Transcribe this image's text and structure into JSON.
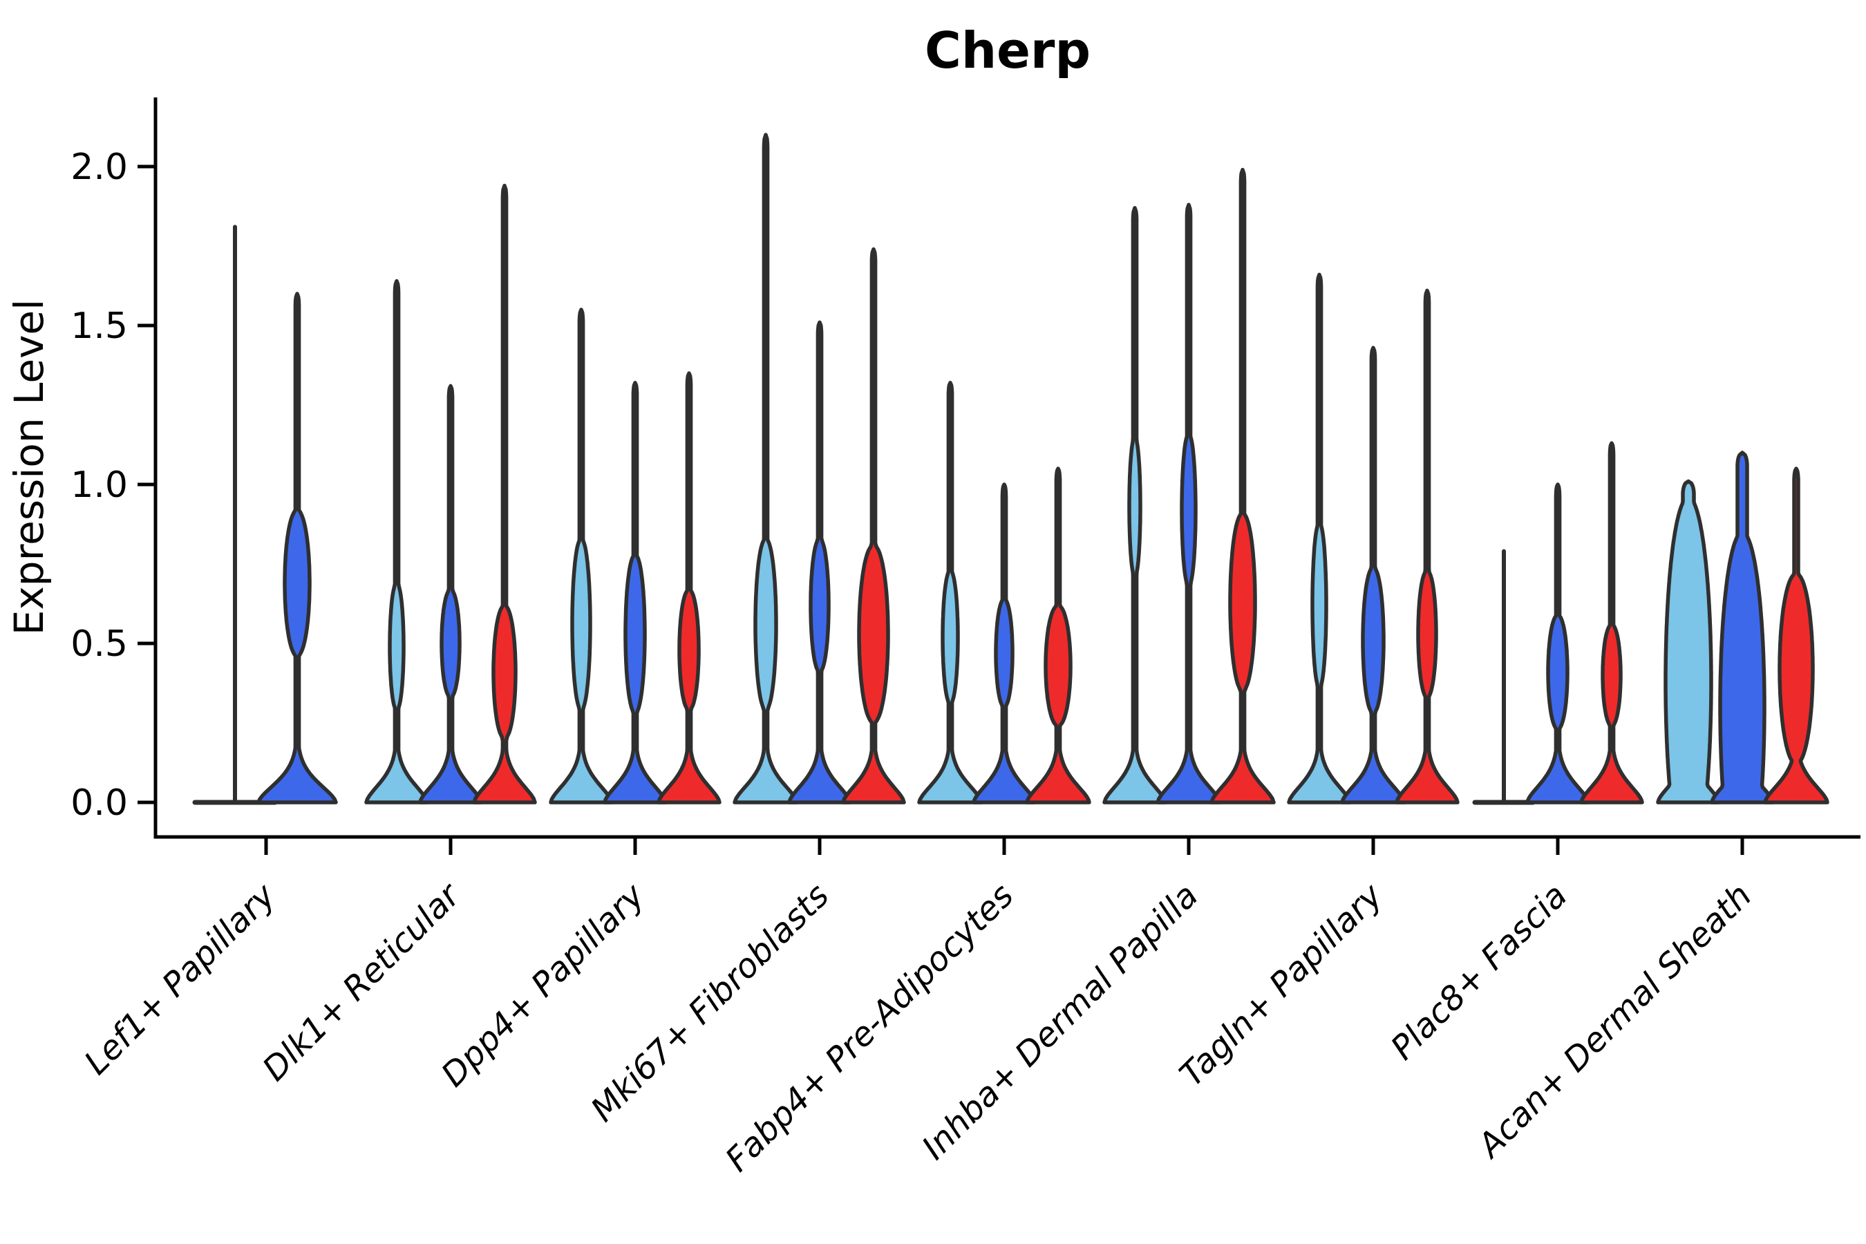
{
  "chart_data": {
    "type": "violin",
    "title": "Cherp",
    "ylabel": "Expression Level",
    "xlabel": "",
    "ylim": [
      0,
      2.2
    ],
    "yticks": [
      0.0,
      0.5,
      1.0,
      1.5,
      2.0
    ],
    "ytick_labels": [
      "0.0",
      "0.5",
      "1.0",
      "1.5",
      "2.0"
    ],
    "grid": false,
    "legend": "none",
    "categories": [
      "Lef1+ Papillary",
      "Dlk1+ Reticular",
      "Dpp4+ Papillary",
      "Mki67+ Fibroblasts",
      "Fabp4+ Pre-Adipocytes",
      "Inhba+ Dermal Papilla",
      "Tagln+ Papillary",
      "Plac8+ Fascia",
      "Acan+ Dermal Sheath"
    ],
    "series": [
      "light_blue",
      "dark_blue",
      "red"
    ],
    "series_colors": {
      "light_blue": "#7CC4E8",
      "dark_blue": "#3D68EA",
      "red": "#EF2A2B"
    },
    "outline_color": "#2F2F2F",
    "groups": [
      {
        "category": "Lef1+ Papillary",
        "violins": [
          {
            "series": "light_blue",
            "shape": "degenerate",
            "max": 1.81,
            "offset": -45,
            "flat_halfspan": 58
          },
          {
            "series": "dark_blue",
            "shape": "normal",
            "max": 1.6,
            "offset": 45,
            "bulge_center": 0.69,
            "bulge_halfheight": 0.23,
            "bulge_halfwidth": 18,
            "base_halfwidth": 56
          }
        ]
      },
      {
        "category": "Dlk1+ Reticular",
        "violins": [
          {
            "series": "light_blue",
            "shape": "normal",
            "max": 1.64,
            "offset": -78,
            "bulge_center": 0.49,
            "bulge_halfheight": 0.2,
            "bulge_halfwidth": 10,
            "base_halfwidth": 44
          },
          {
            "series": "dark_blue",
            "shape": "normal",
            "max": 1.31,
            "offset": 0,
            "bulge_center": 0.5,
            "bulge_halfheight": 0.17,
            "bulge_halfwidth": 13,
            "base_halfwidth": 44
          },
          {
            "series": "red",
            "shape": "normal",
            "max": 1.94,
            "offset": 78,
            "bulge_center": 0.41,
            "bulge_halfheight": 0.21,
            "bulge_halfwidth": 16,
            "base_halfwidth": 44
          }
        ]
      },
      {
        "category": "Dpp4+ Papillary",
        "violins": [
          {
            "series": "light_blue",
            "shape": "normal",
            "max": 1.55,
            "offset": -78,
            "bulge_center": 0.56,
            "bulge_halfheight": 0.27,
            "bulge_halfwidth": 13,
            "base_halfwidth": 44
          },
          {
            "series": "dark_blue",
            "shape": "normal",
            "max": 1.32,
            "offset": 0,
            "bulge_center": 0.53,
            "bulge_halfheight": 0.25,
            "bulge_halfwidth": 14,
            "base_halfwidth": 44
          },
          {
            "series": "red",
            "shape": "normal",
            "max": 1.35,
            "offset": 78,
            "bulge_center": 0.48,
            "bulge_halfheight": 0.19,
            "bulge_halfwidth": 14,
            "base_halfwidth": 44
          }
        ]
      },
      {
        "category": "Mki67+ Fibroblasts",
        "violins": [
          {
            "series": "light_blue",
            "shape": "normal",
            "max": 2.1,
            "offset": -78,
            "bulge_center": 0.56,
            "bulge_halfheight": 0.27,
            "bulge_halfwidth": 15,
            "base_halfwidth": 45
          },
          {
            "series": "dark_blue",
            "shape": "normal",
            "max": 1.51,
            "offset": 0,
            "bulge_center": 0.62,
            "bulge_halfheight": 0.21,
            "bulge_halfwidth": 13,
            "base_halfwidth": 44
          },
          {
            "series": "red",
            "shape": "normal",
            "max": 1.74,
            "offset": 78,
            "bulge_center": 0.53,
            "bulge_halfheight": 0.28,
            "bulge_halfwidth": 21,
            "base_halfwidth": 44
          }
        ]
      },
      {
        "category": "Fabp4+ Pre-Adipocytes",
        "violins": [
          {
            "series": "light_blue",
            "shape": "normal",
            "max": 1.32,
            "offset": -78,
            "bulge_center": 0.52,
            "bulge_halfheight": 0.21,
            "bulge_halfwidth": 11,
            "base_halfwidth": 45
          },
          {
            "series": "dark_blue",
            "shape": "normal",
            "max": 1.0,
            "offset": 0,
            "bulge_center": 0.47,
            "bulge_halfheight": 0.17,
            "bulge_halfwidth": 12,
            "base_halfwidth": 44
          },
          {
            "series": "red",
            "shape": "normal",
            "max": 1.05,
            "offset": 78,
            "bulge_center": 0.43,
            "bulge_halfheight": 0.19,
            "bulge_halfwidth": 18,
            "base_halfwidth": 45
          }
        ]
      },
      {
        "category": "Inhba+ Dermal Papilla",
        "violins": [
          {
            "series": "light_blue",
            "shape": "normal",
            "max": 1.87,
            "offset": -78,
            "bulge_center": 0.93,
            "bulge_halfheight": 0.22,
            "bulge_halfwidth": 8,
            "base_halfwidth": 44
          },
          {
            "series": "dark_blue",
            "shape": "normal",
            "max": 1.88,
            "offset": 0,
            "bulge_center": 0.92,
            "bulge_halfheight": 0.24,
            "bulge_halfwidth": 10,
            "base_halfwidth": 45
          },
          {
            "series": "red",
            "shape": "normal",
            "max": 1.99,
            "offset": 78,
            "bulge_center": 0.63,
            "bulge_halfheight": 0.28,
            "bulge_halfwidth": 18,
            "base_halfwidth": 45
          }
        ]
      },
      {
        "category": "Tagln+ Papillary",
        "violins": [
          {
            "series": "light_blue",
            "shape": "normal",
            "max": 1.66,
            "offset": -78,
            "bulge_center": 0.62,
            "bulge_halfheight": 0.26,
            "bulge_halfwidth": 10,
            "base_halfwidth": 44
          },
          {
            "series": "dark_blue",
            "shape": "normal",
            "max": 1.43,
            "offset": 0,
            "bulge_center": 0.51,
            "bulge_halfheight": 0.23,
            "bulge_halfwidth": 15,
            "base_halfwidth": 45
          },
          {
            "series": "red",
            "shape": "normal",
            "max": 1.61,
            "offset": 78,
            "bulge_center": 0.53,
            "bulge_halfheight": 0.2,
            "bulge_halfwidth": 13,
            "base_halfwidth": 44
          }
        ]
      },
      {
        "category": "Plac8+ Fascia",
        "violins": [
          {
            "series": "light_blue",
            "shape": "degenerate",
            "max": 0.79,
            "offset": -78,
            "flat_halfspan": 42
          },
          {
            "series": "dark_blue",
            "shape": "normal",
            "max": 1.0,
            "offset": 0,
            "bulge_center": 0.41,
            "bulge_halfheight": 0.18,
            "bulge_halfwidth": 14,
            "base_halfwidth": 44
          },
          {
            "series": "red",
            "shape": "normal",
            "max": 1.13,
            "offset": 78,
            "bulge_center": 0.4,
            "bulge_halfheight": 0.16,
            "bulge_halfwidth": 13,
            "base_halfwidth": 44
          }
        ]
      },
      {
        "category": "Acan+ Dermal Sheath",
        "violins": [
          {
            "series": "light_blue",
            "shape": "broad",
            "max": 1.01,
            "offset": -78,
            "bulge_center": 0.38,
            "bulge_halfheight": 0.58,
            "bulge_halfwidth": 33,
            "base_halfwidth": 44,
            "spike_halfwidth": 8
          },
          {
            "series": "dark_blue",
            "shape": "broad",
            "max": 1.1,
            "offset": 0,
            "bulge_center": 0.3,
            "bulge_halfheight": 0.55,
            "bulge_halfwidth": 32,
            "base_halfwidth": 44,
            "spike_halfwidth": 7
          },
          {
            "series": "red",
            "shape": "normal",
            "max": 1.05,
            "offset": 78,
            "bulge_center": 0.42,
            "bulge_halfheight": 0.3,
            "bulge_halfwidth": 24,
            "base_halfwidth": 45,
            "spike_halfwidth": 3
          }
        ]
      }
    ]
  }
}
